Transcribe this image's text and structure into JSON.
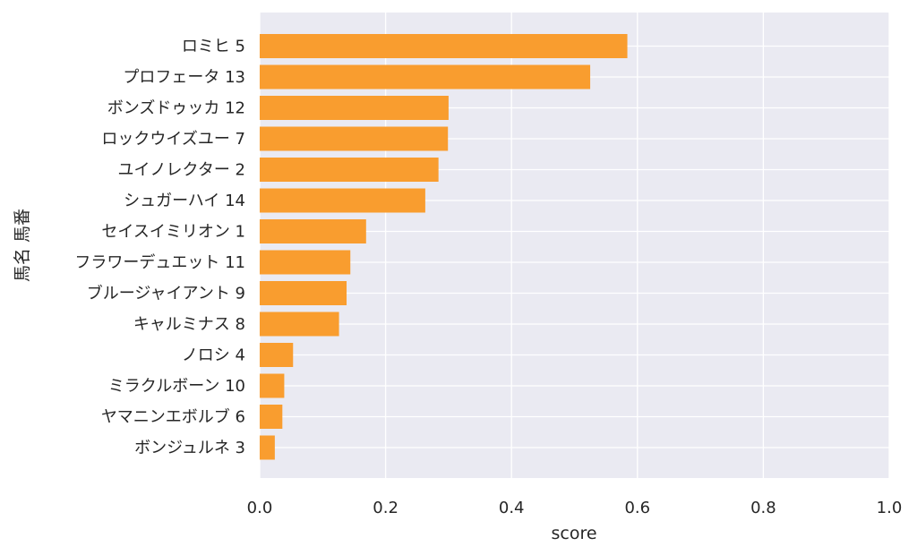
{
  "chart_data": {
    "type": "bar",
    "orientation": "horizontal",
    "categories": [
      "ロミヒ 5",
      "プロフェータ 13",
      "ボンズドゥッカ 12",
      "ロックウイズユー 7",
      "ユイノレクター 2",
      "シュガーハイ 14",
      "セイスイミリオン 1",
      "フラワーデュエット 11",
      "ブルージャイアント 9",
      "キャルミナス 8",
      "ノロシ 4",
      "ミラクルボーン 10",
      "ヤマニンエボルブ 6",
      "ボンジュルネ 3"
    ],
    "values": [
      0.584,
      0.525,
      0.3,
      0.299,
      0.284,
      0.263,
      0.169,
      0.144,
      0.138,
      0.126,
      0.053,
      0.039,
      0.036,
      0.024
    ],
    "xlabel": "score",
    "ylabel": "馬名 馬番",
    "xlim": [
      0,
      1.0
    ],
    "xticks": [
      "0.0",
      "0.2",
      "0.4",
      "0.6",
      "0.8",
      "1.0"
    ],
    "grid": true,
    "colors": {
      "bar": "#f99d2f",
      "plot_background": "#eaeaf2",
      "grid": "#ffffff"
    }
  }
}
